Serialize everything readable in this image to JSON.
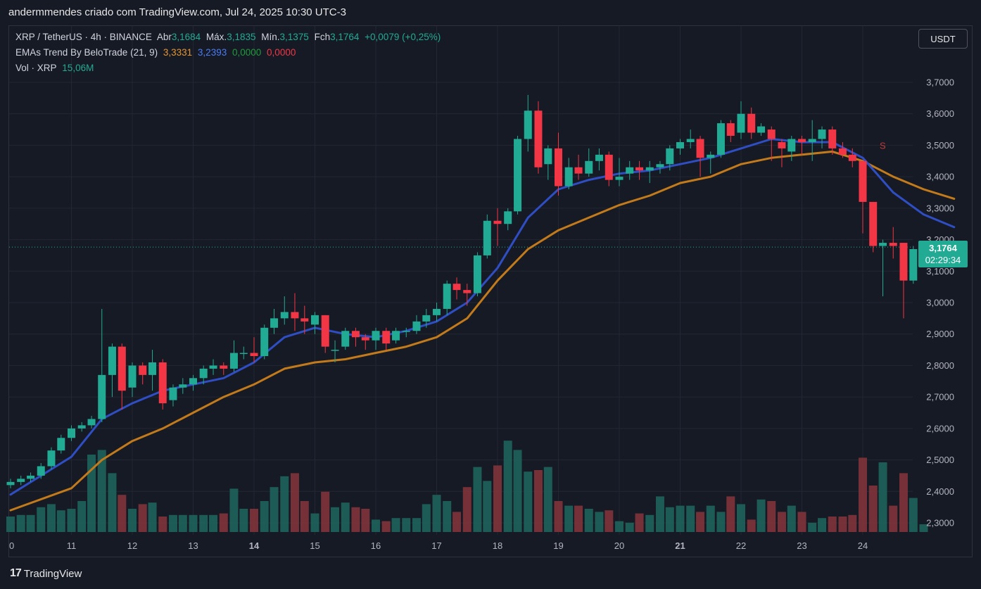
{
  "header": {
    "title": "andermmendes criado com TradingView.com, Jul 24, 2025 10:30 UTC-3"
  },
  "legend": {
    "symbol": "XRP / TetherUS · 4h · BINANCE",
    "open_label": "Abr",
    "open": "3,1684",
    "high_label": "Máx.",
    "high": "3,1835",
    "low_label": "Mín.",
    "low": "3,1375",
    "close_label": "Fch",
    "close": "3,1764",
    "change": "+0,0079 (+0,25%)",
    "indicator": "EMAs Trend By BeloTrade (21, 9)",
    "ind_v1": "3,3331",
    "ind_v2": "3,2393",
    "ind_v3": "0,0000",
    "ind_v4": "0,0000",
    "vol_label": "Vol · XRP",
    "vol_value": "15,06M"
  },
  "currency_button": "USDT",
  "last_price": {
    "price": "3,1764",
    "countdown": "02:29:34"
  },
  "brand": {
    "logo": "17",
    "name": "TradingView"
  },
  "colors": {
    "up": "#22ab94",
    "down": "#f23645",
    "ema_fast": "#2f4ec4",
    "ema_slow": "#c27a1a",
    "background": "#161a25"
  },
  "chart_data": {
    "type": "candlestick",
    "symbol": "XRP / TetherUS",
    "interval": "4h",
    "ylim": [
      2.28,
      3.78
    ],
    "y_ticks": [
      "3,7000",
      "3,6000",
      "3,5000",
      "3,4000",
      "3,3000",
      "3,2000",
      "3,1000",
      "3,0000",
      "2,9000",
      "2,8000",
      "2,7000",
      "2,6000",
      "2,5000",
      "2,4000",
      "2,3000"
    ],
    "y_tick_values": [
      3.7,
      3.6,
      3.5,
      3.4,
      3.3,
      3.2,
      3.1,
      3.0,
      2.9,
      2.8,
      2.7,
      2.6,
      2.5,
      2.4,
      2.3
    ],
    "x_ticks": [
      {
        "label": "0",
        "day": 10,
        "bold": false
      },
      {
        "label": "11",
        "day": 11,
        "bold": false
      },
      {
        "label": "12",
        "day": 12,
        "bold": false
      },
      {
        "label": "13",
        "day": 13,
        "bold": false
      },
      {
        "label": "14",
        "day": 14,
        "bold": true
      },
      {
        "label": "15",
        "day": 15,
        "bold": false
      },
      {
        "label": "16",
        "day": 16,
        "bold": false
      },
      {
        "label": "17",
        "day": 17,
        "bold": false
      },
      {
        "label": "18",
        "day": 18,
        "bold": false
      },
      {
        "label": "19",
        "day": 19,
        "bold": false
      },
      {
        "label": "20",
        "day": 20,
        "bold": false
      },
      {
        "label": "21",
        "day": 21,
        "bold": true
      },
      {
        "label": "22",
        "day": 22,
        "bold": false
      },
      {
        "label": "23",
        "day": 23,
        "bold": false
      },
      {
        "label": "24",
        "day": 24,
        "bold": false
      }
    ],
    "candles": [
      [
        10.0,
        2.42,
        2.43,
        2.41,
        2.44
      ],
      [
        10.17,
        2.43,
        2.44,
        2.42,
        2.45
      ],
      [
        10.33,
        2.44,
        2.45,
        2.43,
        2.46
      ],
      [
        10.5,
        2.45,
        2.48,
        2.44,
        2.49
      ],
      [
        10.67,
        2.48,
        2.53,
        2.47,
        2.54
      ],
      [
        10.83,
        2.53,
        2.57,
        2.52,
        2.58
      ],
      [
        11.0,
        2.57,
        2.6,
        2.56,
        2.61
      ],
      [
        11.17,
        2.6,
        2.61,
        2.59,
        2.62
      ],
      [
        11.33,
        2.61,
        2.63,
        2.6,
        2.64
      ],
      [
        11.5,
        2.63,
        2.77,
        2.62,
        2.98
      ],
      [
        11.67,
        2.77,
        2.86,
        2.7,
        2.87
      ],
      [
        11.83,
        2.86,
        2.72,
        2.66,
        2.87
      ],
      [
        12.0,
        2.73,
        2.8,
        2.7,
        2.81
      ],
      [
        12.17,
        2.8,
        2.77,
        2.74,
        2.81
      ],
      [
        12.33,
        2.77,
        2.81,
        2.72,
        2.85
      ],
      [
        12.5,
        2.81,
        2.68,
        2.66,
        2.82
      ],
      [
        12.67,
        2.69,
        2.73,
        2.67,
        2.74
      ],
      [
        12.83,
        2.73,
        2.74,
        2.71,
        2.76
      ],
      [
        13.0,
        2.74,
        2.76,
        2.72,
        2.77
      ],
      [
        13.17,
        2.76,
        2.79,
        2.74,
        2.8
      ],
      [
        13.33,
        2.79,
        2.8,
        2.77,
        2.82
      ],
      [
        13.5,
        2.8,
        2.79,
        2.77,
        2.81
      ],
      [
        13.67,
        2.79,
        2.84,
        2.78,
        2.88
      ],
      [
        13.83,
        2.84,
        2.84,
        2.82,
        2.86
      ],
      [
        14.0,
        2.84,
        2.83,
        2.81,
        2.89
      ],
      [
        14.17,
        2.83,
        2.92,
        2.82,
        2.93
      ],
      [
        14.33,
        2.92,
        2.95,
        2.9,
        2.98
      ],
      [
        14.5,
        2.95,
        2.97,
        2.93,
        3.02
      ],
      [
        14.67,
        2.97,
        2.95,
        2.91,
        3.03
      ],
      [
        14.83,
        2.95,
        2.94,
        2.9,
        2.99
      ],
      [
        15.0,
        2.93,
        2.96,
        2.9,
        2.97
      ],
      [
        15.17,
        2.96,
        2.86,
        2.84,
        2.96
      ],
      [
        15.33,
        2.85,
        2.85,
        2.81,
        2.88
      ],
      [
        15.5,
        2.86,
        2.91,
        2.85,
        2.92
      ],
      [
        15.67,
        2.91,
        2.89,
        2.86,
        2.92
      ],
      [
        15.83,
        2.89,
        2.88,
        2.85,
        2.9
      ],
      [
        16.0,
        2.88,
        2.91,
        2.85,
        2.92
      ],
      [
        16.17,
        2.91,
        2.87,
        2.85,
        2.92
      ],
      [
        16.33,
        2.88,
        2.91,
        2.87,
        2.92
      ],
      [
        16.5,
        2.91,
        2.91,
        2.89,
        2.92
      ],
      [
        16.67,
        2.91,
        2.94,
        2.9,
        2.96
      ],
      [
        16.83,
        2.94,
        2.96,
        2.92,
        2.98
      ],
      [
        17.0,
        2.96,
        2.98,
        2.94,
        3.0
      ],
      [
        17.17,
        2.98,
        3.06,
        2.96,
        3.07
      ],
      [
        17.33,
        3.06,
        3.04,
        3.01,
        3.08
      ],
      [
        17.5,
        3.04,
        3.03,
        2.99,
        3.06
      ],
      [
        17.67,
        3.03,
        3.15,
        3.02,
        3.16
      ],
      [
        17.83,
        3.15,
        3.26,
        3.14,
        3.28
      ],
      [
        18.0,
        3.26,
        3.25,
        3.18,
        3.3
      ],
      [
        18.17,
        3.25,
        3.29,
        3.23,
        3.3
      ],
      [
        18.33,
        3.29,
        3.52,
        3.28,
        3.53
      ],
      [
        18.5,
        3.52,
        3.61,
        3.48,
        3.66
      ],
      [
        18.67,
        3.61,
        3.43,
        3.41,
        3.64
      ],
      [
        18.83,
        3.44,
        3.49,
        3.39,
        3.5
      ],
      [
        19.0,
        3.49,
        3.37,
        3.34,
        3.54
      ],
      [
        19.17,
        3.37,
        3.43,
        3.36,
        3.46
      ],
      [
        19.33,
        3.43,
        3.41,
        3.39,
        3.47
      ],
      [
        19.5,
        3.41,
        3.45,
        3.4,
        3.49
      ],
      [
        19.67,
        3.45,
        3.47,
        3.42,
        3.49
      ],
      [
        19.83,
        3.47,
        3.39,
        3.37,
        3.48
      ],
      [
        20.0,
        3.39,
        3.4,
        3.37,
        3.46
      ],
      [
        20.17,
        3.41,
        3.43,
        3.39,
        3.45
      ],
      [
        20.33,
        3.43,
        3.42,
        3.39,
        3.45
      ],
      [
        20.5,
        3.42,
        3.43,
        3.38,
        3.45
      ],
      [
        20.67,
        3.43,
        3.44,
        3.41,
        3.45
      ],
      [
        20.83,
        3.44,
        3.49,
        3.42,
        3.5
      ],
      [
        21.0,
        3.49,
        3.51,
        3.47,
        3.52
      ],
      [
        21.17,
        3.51,
        3.52,
        3.49,
        3.55
      ],
      [
        21.33,
        3.52,
        3.46,
        3.4,
        3.53
      ],
      [
        21.5,
        3.46,
        3.47,
        3.41,
        3.48
      ],
      [
        21.67,
        3.47,
        3.57,
        3.46,
        3.58
      ],
      [
        21.83,
        3.57,
        3.53,
        3.51,
        3.58
      ],
      [
        22.0,
        3.54,
        3.6,
        3.52,
        3.64
      ],
      [
        22.17,
        3.6,
        3.54,
        3.52,
        3.62
      ],
      [
        22.33,
        3.54,
        3.56,
        3.53,
        3.57
      ],
      [
        22.5,
        3.55,
        3.52,
        3.45,
        3.56
      ],
      [
        22.67,
        3.51,
        3.49,
        3.43,
        3.52
      ],
      [
        22.83,
        3.48,
        3.52,
        3.45,
        3.53
      ],
      [
        23.0,
        3.52,
        3.51,
        3.47,
        3.53
      ],
      [
        23.17,
        3.51,
        3.52,
        3.45,
        3.58
      ],
      [
        23.33,
        3.52,
        3.55,
        3.49,
        3.56
      ],
      [
        23.5,
        3.55,
        3.49,
        3.47,
        3.56
      ],
      [
        23.67,
        3.49,
        3.47,
        3.46,
        3.51
      ],
      [
        23.83,
        3.47,
        3.45,
        3.43,
        3.49
      ],
      [
        24.0,
        3.45,
        3.32,
        3.22,
        3.45
      ],
      [
        24.17,
        3.32,
        3.18,
        3.16,
        3.32
      ],
      [
        24.33,
        3.18,
        3.19,
        3.02,
        3.2
      ],
      [
        24.5,
        3.19,
        3.18,
        3.14,
        3.24
      ],
      [
        24.67,
        3.19,
        3.07,
        2.95,
        3.19
      ],
      [
        24.83,
        3.07,
        3.17,
        3.06,
        3.18
      ],
      [
        25.0,
        3.17,
        3.18,
        3.14,
        3.18
      ]
    ],
    "volume_relative": [
      0.1,
      0.11,
      0.11,
      0.16,
      0.18,
      0.14,
      0.15,
      0.2,
      0.5,
      0.53,
      0.38,
      0.24,
      0.15,
      0.18,
      0.19,
      0.1,
      0.11,
      0.11,
      0.11,
      0.11,
      0.11,
      0.12,
      0.28,
      0.15,
      0.15,
      0.2,
      0.29,
      0.36,
      0.38,
      0.2,
      0.12,
      0.26,
      0.16,
      0.19,
      0.16,
      0.15,
      0.08,
      0.07,
      0.09,
      0.09,
      0.09,
      0.18,
      0.24,
      0.2,
      0.13,
      0.29,
      0.42,
      0.33,
      0.43,
      0.59,
      0.53,
      0.39,
      0.4,
      0.42,
      0.2,
      0.17,
      0.17,
      0.15,
      0.13,
      0.14,
      0.07,
      0.06,
      0.12,
      0.11,
      0.23,
      0.16,
      0.17,
      0.17,
      0.13,
      0.17,
      0.13,
      0.23,
      0.18,
      0.08,
      0.21,
      0.2,
      0.13,
      0.17,
      0.13,
      0.06,
      0.09,
      0.1,
      0.1,
      0.11,
      0.48,
      0.3,
      0.45,
      0.17,
      0.38,
      0.22,
      0.05
    ],
    "ema_fast": [
      [
        10.0,
        2.39
      ],
      [
        11.0,
        2.51
      ],
      [
        11.5,
        2.63
      ],
      [
        12.0,
        2.68
      ],
      [
        12.5,
        2.72
      ],
      [
        13.0,
        2.74
      ],
      [
        13.5,
        2.76
      ],
      [
        14.0,
        2.81
      ],
      [
        14.5,
        2.89
      ],
      [
        15.0,
        2.92
      ],
      [
        15.5,
        2.9
      ],
      [
        16.0,
        2.89
      ],
      [
        16.5,
        2.91
      ],
      [
        17.0,
        2.94
      ],
      [
        17.5,
        3.0
      ],
      [
        18.0,
        3.11
      ],
      [
        18.5,
        3.27
      ],
      [
        19.0,
        3.36
      ],
      [
        19.5,
        3.39
      ],
      [
        20.0,
        3.41
      ],
      [
        20.5,
        3.42
      ],
      [
        21.0,
        3.44
      ],
      [
        21.5,
        3.46
      ],
      [
        22.0,
        3.49
      ],
      [
        22.5,
        3.52
      ],
      [
        23.0,
        3.51
      ],
      [
        23.5,
        3.51
      ],
      [
        24.0,
        3.46
      ],
      [
        24.5,
        3.35
      ],
      [
        25.0,
        3.28
      ],
      [
        25.5,
        3.24
      ]
    ],
    "ema_slow": [
      [
        10.0,
        2.34
      ],
      [
        11.0,
        2.41
      ],
      [
        11.5,
        2.5
      ],
      [
        12.0,
        2.56
      ],
      [
        12.5,
        2.6
      ],
      [
        13.0,
        2.65
      ],
      [
        13.5,
        2.7
      ],
      [
        14.0,
        2.74
      ],
      [
        14.5,
        2.79
      ],
      [
        15.0,
        2.81
      ],
      [
        15.5,
        2.82
      ],
      [
        16.0,
        2.84
      ],
      [
        16.5,
        2.86
      ],
      [
        17.0,
        2.89
      ],
      [
        17.5,
        2.95
      ],
      [
        18.0,
        3.07
      ],
      [
        18.5,
        3.17
      ],
      [
        19.0,
        3.23
      ],
      [
        19.5,
        3.27
      ],
      [
        20.0,
        3.31
      ],
      [
        20.5,
        3.34
      ],
      [
        21.0,
        3.38
      ],
      [
        21.5,
        3.4
      ],
      [
        22.0,
        3.44
      ],
      [
        22.5,
        3.46
      ],
      [
        23.0,
        3.47
      ],
      [
        23.5,
        3.48
      ],
      [
        24.0,
        3.45
      ],
      [
        24.5,
        3.4
      ],
      [
        25.0,
        3.36
      ],
      [
        25.5,
        3.33
      ]
    ],
    "signal_label": "S",
    "signal_point": [
      24.0,
      3.48
    ],
    "last_price_value": 3.1764
  }
}
